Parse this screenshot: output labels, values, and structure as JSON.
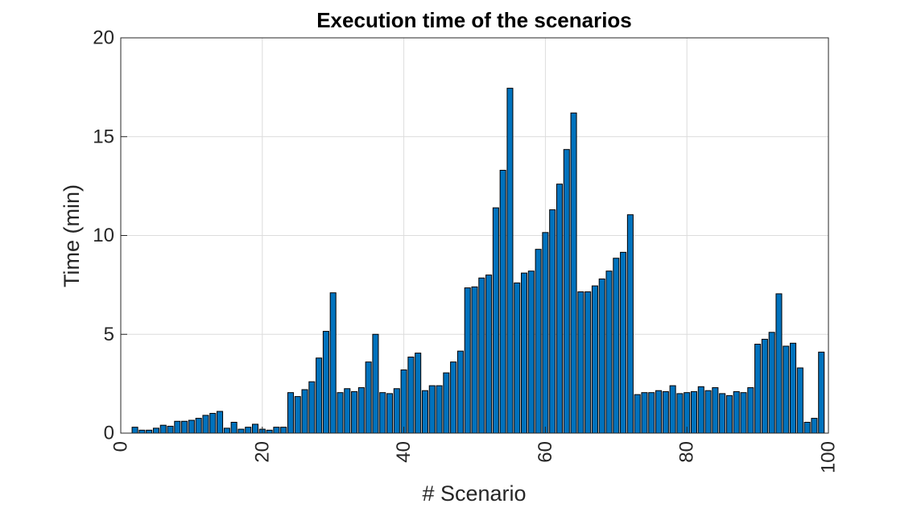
{
  "chart_data": {
    "type": "bar",
    "title": "Execution time of the scenarios",
    "xlabel": "# Scenario",
    "ylabel": "Time (min)",
    "xlim": [
      0,
      100
    ],
    "ylim": [
      0,
      20
    ],
    "x_ticks": [
      "0",
      "20",
      "40",
      "60",
      "80",
      "100"
    ],
    "y_ticks": [
      "0",
      "5",
      "10",
      "15",
      "20"
    ],
    "grid": true,
    "bar_color": "#0072BD",
    "bar_edge_color": "#000000",
    "x": [
      2,
      3,
      4,
      5,
      6,
      7,
      8,
      9,
      10,
      11,
      12,
      13,
      14,
      15,
      16,
      17,
      18,
      19,
      20,
      21,
      22,
      23,
      24,
      25,
      26,
      27,
      28,
      29,
      30,
      31,
      32,
      33,
      34,
      35,
      36,
      37,
      38,
      39,
      40,
      41,
      42,
      43,
      44,
      45,
      46,
      47,
      48,
      49,
      50,
      51,
      52,
      53,
      54,
      55,
      56,
      57,
      58,
      59,
      60,
      61,
      62,
      63,
      64,
      65,
      66,
      67,
      68,
      69,
      70,
      71,
      72,
      73,
      74,
      75,
      76,
      77,
      78,
      79,
      80,
      81,
      82,
      83,
      84,
      85,
      86,
      87,
      88,
      89,
      90,
      91,
      92,
      93,
      94,
      95,
      96,
      97,
      98,
      99
    ],
    "values": [
      0.3,
      0.15,
      0.15,
      0.25,
      0.4,
      0.35,
      0.6,
      0.6,
      0.65,
      0.75,
      0.9,
      1.0,
      1.1,
      0.25,
      0.55,
      0.2,
      0.3,
      0.45,
      0.2,
      0.15,
      0.3,
      0.3,
      2.05,
      1.85,
      2.2,
      2.6,
      3.8,
      5.15,
      7.1,
      2.05,
      2.25,
      2.1,
      2.3,
      3.6,
      5.0,
      2.05,
      2.0,
      2.25,
      3.2,
      3.85,
      4.05,
      2.15,
      2.4,
      2.4,
      3.05,
      3.6,
      4.15,
      7.35,
      7.4,
      7.85,
      8.0,
      11.4,
      13.3,
      17.45,
      7.6,
      8.1,
      8.2,
      9.3,
      10.15,
      11.3,
      12.6,
      14.35,
      16.2,
      7.15,
      7.15,
      7.45,
      7.8,
      8.2,
      8.85,
      9.15,
      11.05,
      1.95,
      2.05,
      2.05,
      2.15,
      2.1,
      2.4,
      2.0,
      2.05,
      2.1,
      2.35,
      2.15,
      2.3,
      2.0,
      1.9,
      2.1,
      2.05,
      2.3,
      4.5,
      4.75,
      5.1,
      7.05,
      4.4,
      4.55,
      3.3,
      0.55,
      0.75,
      4.1
    ]
  }
}
